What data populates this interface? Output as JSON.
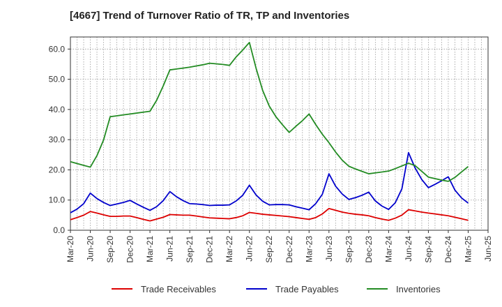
{
  "title": "[4667]  Trend of Turnover Ratio of TR, TP and Inventories",
  "colors": {
    "trade_receivables": "#dd0000",
    "trade_payables": "#0000cc",
    "inventories": "#228b22",
    "grid": "#999999",
    "axis": "#333333"
  },
  "legend": {
    "items": [
      "Trade Receivables",
      "Trade Payables",
      "Inventories"
    ]
  },
  "chart_data": {
    "type": "line",
    "title": "[4667]  Trend of Turnover Ratio of TR, TP and Inventories",
    "xlabel": "",
    "ylabel": "",
    "ylim": [
      0,
      64
    ],
    "yticks": [
      0.0,
      10.0,
      20.0,
      30.0,
      40.0,
      50.0,
      60.0
    ],
    "ytick_labels": [
      "0.0",
      "10.0",
      "20.0",
      "30.0",
      "40.0",
      "50.0",
      "60.0"
    ],
    "xtick_labels": [
      "Mar-20",
      "Jun-20",
      "Sep-20",
      "Dec-20",
      "Mar-21",
      "Jun-21",
      "Sep-21",
      "Dec-21",
      "Mar-22",
      "Jun-22",
      "Sep-22",
      "Dec-22",
      "Mar-23",
      "Jun-23",
      "Sep-23",
      "Dec-23",
      "Mar-24",
      "Jun-24",
      "Sep-24",
      "Dec-24",
      "Mar-25",
      "Jun-25"
    ],
    "grid": true,
    "legend_position": "bottom",
    "x": [
      "Mar-20",
      "Apr-20",
      "May-20",
      "Jun-20",
      "Jul-20",
      "Aug-20",
      "Sep-20",
      "Oct-20",
      "Nov-20",
      "Dec-20",
      "Jan-21",
      "Feb-21",
      "Mar-21",
      "Apr-21",
      "May-21",
      "Jun-21",
      "Jul-21",
      "Aug-21",
      "Sep-21",
      "Oct-21",
      "Nov-21",
      "Dec-21",
      "Jan-22",
      "Feb-22",
      "Mar-22",
      "Apr-22",
      "May-22",
      "Jun-22",
      "Jul-22",
      "Aug-22",
      "Sep-22",
      "Oct-22",
      "Nov-22",
      "Dec-22",
      "Jan-23",
      "Feb-23",
      "Mar-23",
      "Apr-23",
      "May-23",
      "Jun-23",
      "Jul-23",
      "Aug-23",
      "Sep-23",
      "Oct-23",
      "Nov-23",
      "Dec-23",
      "Jan-24",
      "Feb-24",
      "Mar-24",
      "Apr-24",
      "May-24",
      "Jun-24",
      "Jul-24",
      "Aug-24",
      "Sep-24",
      "Oct-24",
      "Nov-24",
      "Dec-24",
      "Jan-25",
      "Feb-25",
      "Mar-25"
    ],
    "series": [
      {
        "name": "Trade Receivables",
        "values": [
          3.5,
          4.2,
          5.0,
          6.2,
          5.7,
          5.1,
          4.6,
          4.6,
          4.7,
          4.7,
          4.2,
          3.6,
          3.1,
          3.7,
          4.3,
          5.2,
          5.1,
          5.0,
          5.0,
          4.7,
          4.4,
          4.1,
          4.0,
          3.9,
          3.8,
          4.2,
          4.8,
          5.9,
          5.6,
          5.3,
          5.1,
          4.9,
          4.7,
          4.5,
          4.2,
          3.9,
          3.6,
          4.2,
          5.4,
          7.2,
          6.6,
          6.0,
          5.6,
          5.3,
          5.1,
          4.8,
          4.2,
          3.7,
          3.3,
          4.0,
          5.0,
          6.8,
          6.4,
          6.0,
          5.7,
          5.4,
          5.1,
          4.8,
          4.3,
          3.8,
          3.3
        ]
      },
      {
        "name": "Trade Payables",
        "values": [
          5.8,
          7.0,
          8.8,
          12.3,
          10.5,
          9.2,
          8.2,
          8.7,
          9.2,
          9.9,
          8.7,
          7.6,
          6.6,
          7.8,
          9.8,
          12.8,
          11.1,
          9.8,
          8.8,
          8.7,
          8.5,
          8.2,
          8.3,
          8.3,
          8.4,
          9.7,
          11.6,
          14.9,
          11.7,
          9.6,
          8.4,
          8.5,
          8.5,
          8.4,
          7.8,
          7.3,
          6.8,
          8.8,
          11.9,
          18.7,
          14.6,
          12.0,
          10.2,
          10.8,
          11.6,
          12.6,
          9.7,
          8.0,
          6.9,
          9.1,
          13.7,
          25.7,
          20.6,
          16.8,
          14.1,
          15.2,
          16.4,
          17.7,
          13.3,
          10.7,
          9.0
        ]
      },
      {
        "name": "Inventories",
        "values": [
          22.7,
          22.1,
          21.5,
          20.9,
          24.7,
          29.9,
          37.6,
          37.9,
          38.2,
          38.5,
          38.8,
          39.1,
          39.4,
          43.0,
          47.8,
          53.1,
          53.4,
          53.7,
          54.0,
          54.4,
          54.8,
          55.3,
          55.1,
          54.9,
          54.6,
          57.4,
          59.7,
          62.2,
          53.7,
          46.3,
          41.1,
          37.6,
          34.9,
          32.4,
          34.4,
          36.3,
          38.5,
          35.0,
          31.8,
          29.0,
          25.9,
          23.2,
          21.2,
          20.3,
          19.5,
          18.7,
          19.0,
          19.3,
          19.6,
          20.4,
          21.3,
          22.2,
          21.4,
          19.5,
          17.6,
          17.1,
          16.6,
          16.2,
          17.5,
          19.3,
          21.1
        ]
      }
    ]
  }
}
